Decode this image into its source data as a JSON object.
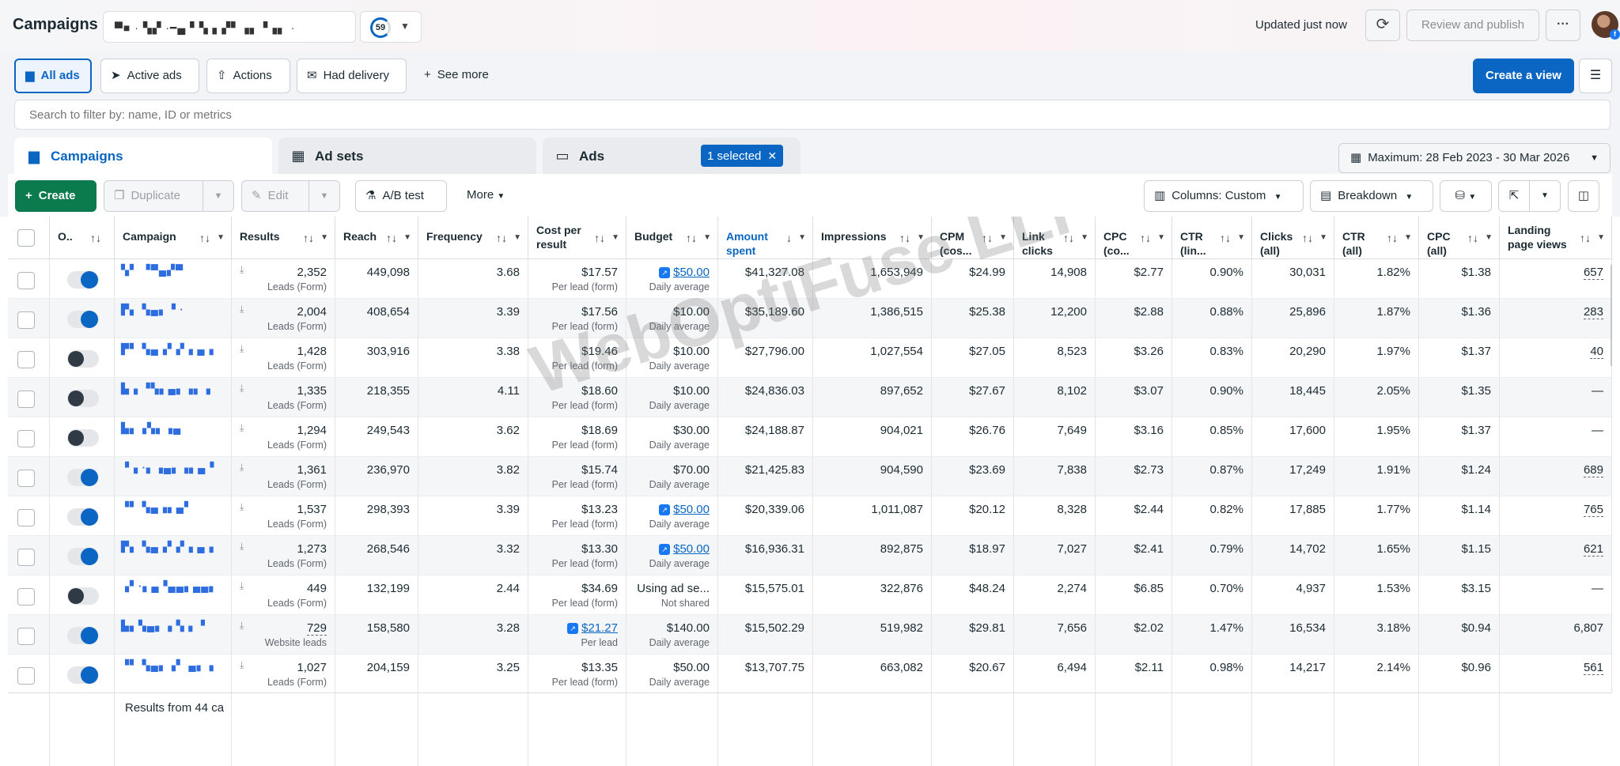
{
  "header": {
    "title": "Campaigns",
    "account_name": "▀■ · ▚▞  ·━▄ ▘▚ ▖▞▘▗▖▝▗▖  ·",
    "score": "59",
    "updated": "Updated just now",
    "review_publish": "Review and publish",
    "more": "···"
  },
  "filters": [
    {
      "label": "All ads",
      "icon": "folder-icon",
      "glyph": "▆"
    },
    {
      "label": "Active ads",
      "icon": "send-icon",
      "glyph": "➤"
    },
    {
      "label": "Actions",
      "icon": "upload-circle-icon",
      "glyph": "⇧"
    },
    {
      "label": "Had delivery",
      "icon": "envelope-icon",
      "glyph": "✉"
    },
    {
      "label": "See more",
      "icon": "plus-icon",
      "glyph": "+"
    }
  ],
  "create_view": "Create a view",
  "search": {
    "placeholder": "Search to filter by: name, ID or metrics"
  },
  "tabs": {
    "campaigns": "Campaigns",
    "adsets": "Ad sets",
    "ads": "Ads",
    "selected": "1 selected",
    "date_range": "Maximum: 28 Feb 2023 - 30 Mar 2026"
  },
  "toolbar": {
    "create": "Create",
    "duplicate": "Duplicate",
    "edit": "Edit",
    "ab_test": "A/B test",
    "more": "More",
    "columns": "Columns: Custom",
    "breakdown": "Breakdown"
  },
  "columns": [
    {
      "label": "O..",
      "dd": false
    },
    {
      "label": "Campaign",
      "dd": true
    },
    {
      "label": "Results",
      "dd": true
    },
    {
      "label": "Reach",
      "dd": true
    },
    {
      "label": "Frequency",
      "dd": true
    },
    {
      "label": "Cost per result",
      "dd": true
    },
    {
      "label": "Budget",
      "dd": true
    },
    {
      "label": "Amount spent",
      "dd": true,
      "sort": "↓",
      "blue": true
    },
    {
      "label": "Impressions",
      "dd": true
    },
    {
      "label": "CPM (cos...",
      "dd": true
    },
    {
      "label": "Link clicks",
      "dd": true
    },
    {
      "label": "CPC (co...",
      "dd": true
    },
    {
      "label": "CTR (lin...",
      "dd": true
    },
    {
      "label": "Clicks (all)",
      "dd": true
    },
    {
      "label": "CTR (all)",
      "dd": true
    },
    {
      "label": "CPC (all)",
      "dd": true
    },
    {
      "label": "Landing page views",
      "dd": true
    }
  ],
  "rows": [
    {
      "on": true,
      "name": "▚▘ ▝▀▄▞▀",
      "results": "2,352",
      "results_type": "Leads (Form)",
      "reach": "449,098",
      "frequency": "3.68",
      "cpr": "$17.57",
      "cpr_type": "Per lead (form)",
      "budget": "$50.00",
      "budget_link": true,
      "budget_type": "Daily average",
      "spent": "$41,327.08",
      "impressions": "1,653,949",
      "cpm": "$24.99",
      "link_clicks": "14,908",
      "cpc": "$2.77",
      "ctr": "0.90%",
      "clicks_all": "30,031",
      "ctr_all": "1.82%",
      "cpc_all": "$1.38",
      "lpv": "657"
    },
    {
      "on": true,
      "name": "▛▖ ▚▄▖▝ ·",
      "results": "2,004",
      "results_type": "Leads (Form)",
      "reach": "408,654",
      "frequency": "3.39",
      "cpr": "$17.56",
      "cpr_type": "Per lead (form)",
      "budget": "$10.00",
      "budget_type": "Daily average",
      "spent": "$35,189.60",
      "impressions": "1,386,515",
      "cpm": "$25.38",
      "link_clicks": "12,200",
      "cpc": "$2.88",
      "ctr": "0.88%",
      "clicks_all": "25,896",
      "ctr_all": "1.87%",
      "cpc_all": "$1.36",
      "lpv": "283"
    },
    {
      "on": false,
      "name": "▛▘ ▚▄▗▘▞▗ ▄▗",
      "results": "1,428",
      "results_type": "Leads (Form)",
      "reach": "303,916",
      "frequency": "3.38",
      "cpr": "$19.46",
      "cpr_type": "Per lead (form)",
      "budget": "$10.00",
      "budget_type": "Daily average",
      "spent": "$27,796.00",
      "impressions": "1,027,554",
      "cpm": "$27.05",
      "link_clicks": "8,523",
      "cpc": "$3.26",
      "ctr": "0.83%",
      "clicks_all": "20,290",
      "ctr_all": "1.97%",
      "cpc_all": "$1.37",
      "lpv": "40"
    },
    {
      "on": false,
      "name": "▙▗ ▝▚▖▄▖▗▖▗",
      "results": "1,335",
      "results_type": "Leads (Form)",
      "reach": "218,355",
      "frequency": "4.11",
      "cpr": "$18.60",
      "cpr_type": "Per lead (form)",
      "budget": "$10.00",
      "budget_type": "Daily average",
      "spent": "$24,836.03",
      "impressions": "897,652",
      "cpm": "$27.67",
      "link_clicks": "8,102",
      "cpc": "$3.07",
      "ctr": "0.90%",
      "clicks_all": "18,445",
      "ctr_all": "2.05%",
      "cpc_all": "$1.35",
      "lpv": "—"
    },
    {
      "on": false,
      "name": "▙▖▗▚▖▗▄",
      "results": "1,294",
      "results_type": "Leads (Form)",
      "reach": "249,543",
      "frequency": "3.62",
      "cpr": "$18.69",
      "cpr_type": "Per lead (form)",
      "budget": "$30.00",
      "budget_type": "Daily average",
      "spent": "$24,188.87",
      "impressions": "904,021",
      "cpm": "$26.76",
      "link_clicks": "7,649",
      "cpc": "$3.16",
      "ctr": "0.85%",
      "clicks_all": "17,600",
      "ctr_all": "1.95%",
      "cpc_all": "$1.37",
      "lpv": "—"
    },
    {
      "on": true,
      "name": "▝▗ ·▖▗▄▖▗▖▄▝",
      "results": "1,361",
      "results_type": "Leads (Form)",
      "reach": "236,970",
      "frequency": "3.82",
      "cpr": "$15.74",
      "cpr_type": "Per lead (form)",
      "budget": "$70.00",
      "budget_type": "Daily average",
      "spent": "$21,425.83",
      "impressions": "904,590",
      "cpm": "$23.69",
      "link_clicks": "7,838",
      "cpc": "$2.73",
      "ctr": "0.87%",
      "clicks_all": "17,249",
      "ctr_all": "1.91%",
      "cpc_all": "$1.24",
      "lpv": "689"
    },
    {
      "on": true,
      "name": "▝▘ ▚▄▗▖▄▘",
      "results": "1,537",
      "results_type": "Leads (Form)",
      "reach": "298,393",
      "frequency": "3.39",
      "cpr": "$13.23",
      "cpr_type": "Per lead (form)",
      "budget": "$50.00",
      "budget_link": true,
      "budget_type": "Daily average",
      "spent": "$20,339.06",
      "impressions": "1,011,087",
      "cpm": "$20.12",
      "link_clicks": "8,328",
      "cpc": "$2.44",
      "ctr": "0.82%",
      "clicks_all": "17,885",
      "ctr_all": "1.77%",
      "cpc_all": "$1.14",
      "lpv": "765"
    },
    {
      "on": true,
      "name": "▛▖ ▚▄▗▘▞▗ ▄▗",
      "results": "1,273",
      "results_type": "Leads (Form)",
      "reach": "268,546",
      "frequency": "3.32",
      "cpr": "$13.30",
      "cpr_type": "Per lead (form)",
      "budget": "$50.00",
      "budget_link": true,
      "budget_type": "Daily average",
      "spent": "$16,936.31",
      "impressions": "892,875",
      "cpm": "$18.97",
      "link_clicks": "7,027",
      "cpc": "$2.41",
      "ctr": "0.79%",
      "clicks_all": "14,702",
      "ctr_all": "1.65%",
      "cpc_all": "$1.15",
      "lpv": "621"
    },
    {
      "on": false,
      "name": "▗▘·▖▄▝▄▄▖▄▄▖",
      "results": "449",
      "results_type": "Leads (Form)",
      "reach": "132,199",
      "frequency": "2.44",
      "cpr": "$34.69",
      "cpr_type": "Per lead (form)",
      "budget": "Using ad se...",
      "budget_type": "Not shared",
      "spent": "$15,575.01",
      "impressions": "322,876",
      "cpm": "$48.24",
      "link_clicks": "2,274",
      "cpc": "$6.85",
      "ctr": "0.70%",
      "clicks_all": "4,937",
      "ctr_all": "1.53%",
      "cpc_all": "$3.15",
      "lpv": "—"
    },
    {
      "on": true,
      "name": "▙▖▚▄▖▗ ▚ ▖  ▘",
      "results": "729",
      "results_type": "Website leads",
      "reach": "158,580",
      "frequency": "3.28",
      "cpr": "$21.27",
      "cpr_link": true,
      "cpr_type": "Per lead",
      "budget": "$140.00",
      "budget_type": "Daily average",
      "spent": "$15,502.29",
      "impressions": "519,982",
      "cpm": "$29.81",
      "link_clicks": "7,656",
      "cpc": "$2.02",
      "ctr": "1.47%",
      "clicks_all": "16,534",
      "ctr_all": "3.18%",
      "cpc_all": "$0.94",
      "lpv": "6,807"
    },
    {
      "on": true,
      "name": "▝▘ ▚▄▖▗▘ ▄▖▗",
      "results": "1,027",
      "results_type": "Leads (Form)",
      "reach": "204,159",
      "frequency": "3.25",
      "cpr": "$13.35",
      "cpr_type": "Per lead (form)",
      "budget": "$50.00",
      "budget_type": "Daily average",
      "spent": "$13,707.75",
      "impressions": "663,082",
      "cpm": "$20.67",
      "link_clicks": "6,494",
      "cpc": "$2.11",
      "ctr": "0.98%",
      "clicks_all": "14,217",
      "ctr_all": "2.14%",
      "cpc_all": "$0.96",
      "lpv": "561"
    }
  ],
  "footer": {
    "results_label": "Results from 44 ca"
  },
  "watermark": "WebOptiFuse LLP"
}
